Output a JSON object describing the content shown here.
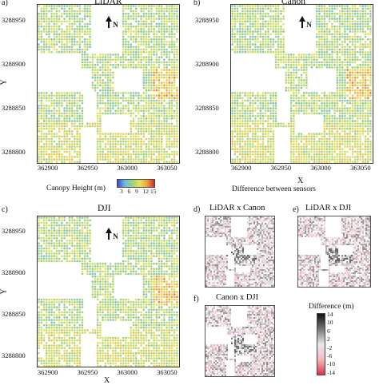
{
  "panels": {
    "a": {
      "label": "a)",
      "title": "LiDAR"
    },
    "b": {
      "label": "b)",
      "title": "Canon"
    },
    "c": {
      "label": "c)",
      "title": "DJI"
    },
    "d": {
      "label": "d)",
      "title": "LiDAR x Canon"
    },
    "e": {
      "label": "e)",
      "title": "LiDAR x DJI"
    },
    "f": {
      "label": "f)",
      "title": "Canon x DJI"
    }
  },
  "axes": {
    "y_label": "Y",
    "x_label": "X",
    "y_ticks": [
      "3288950",
      "3288900",
      "3288850",
      "3288800"
    ],
    "x_ticks": [
      "362900",
      "362950",
      "363000",
      "363050"
    ],
    "north": "N"
  },
  "canopy_legend": {
    "title": "Canopy Height (m)",
    "ticks": [
      "3",
      "6",
      "9",
      "12",
      "15"
    ],
    "colors": [
      "#3b4cc0",
      "#6fb8e6",
      "#9ad27a",
      "#e3e35a",
      "#f4a23d",
      "#d62728"
    ]
  },
  "difference_header": "Difference between sensors",
  "difference_legend": {
    "title": "Difference (m)",
    "ticks": [
      "14",
      "10",
      "6",
      "2",
      "-2",
      "-6",
      "-10",
      "-14"
    ],
    "colors": [
      "#111111",
      "#777777",
      "#e8e8e8",
      "#f2b8c0",
      "#e0304a"
    ]
  },
  "chart_data": [
    {
      "type": "heatmap",
      "title": "LiDAR",
      "xlabel": "",
      "ylabel": "Y",
      "x_ticks": [
        362900,
        362950,
        363000,
        363050
      ],
      "y_ticks": [
        3288800,
        3288850,
        3288900,
        3288950
      ],
      "color_range": [
        3,
        15
      ],
      "unit": "m"
    },
    {
      "type": "heatmap",
      "title": "Canon",
      "xlabel": "X",
      "ylabel": "",
      "x_ticks": [
        362900,
        362950,
        363000,
        363050
      ],
      "y_ticks": [
        3288800,
        3288850,
        3288900,
        3288950
      ],
      "color_range": [
        3,
        15
      ],
      "unit": "m"
    },
    {
      "type": "heatmap",
      "title": "DJI",
      "xlabel": "X",
      "ylabel": "Y",
      "x_ticks": [
        362900,
        362950,
        363000,
        363050
      ],
      "y_ticks": [
        3288800,
        3288850,
        3288900,
        3288950
      ],
      "color_range": [
        3,
        15
      ],
      "unit": "m"
    },
    {
      "type": "heatmap",
      "title": "LiDAR x Canon",
      "color_range": [
        -14,
        14
      ],
      "unit": "m"
    },
    {
      "type": "heatmap",
      "title": "LiDAR x DJI",
      "color_range": [
        -14,
        14
      ],
      "unit": "m"
    },
    {
      "type": "heatmap",
      "title": "Canon x DJI",
      "color_range": [
        -14,
        14
      ],
      "unit": "m"
    }
  ]
}
